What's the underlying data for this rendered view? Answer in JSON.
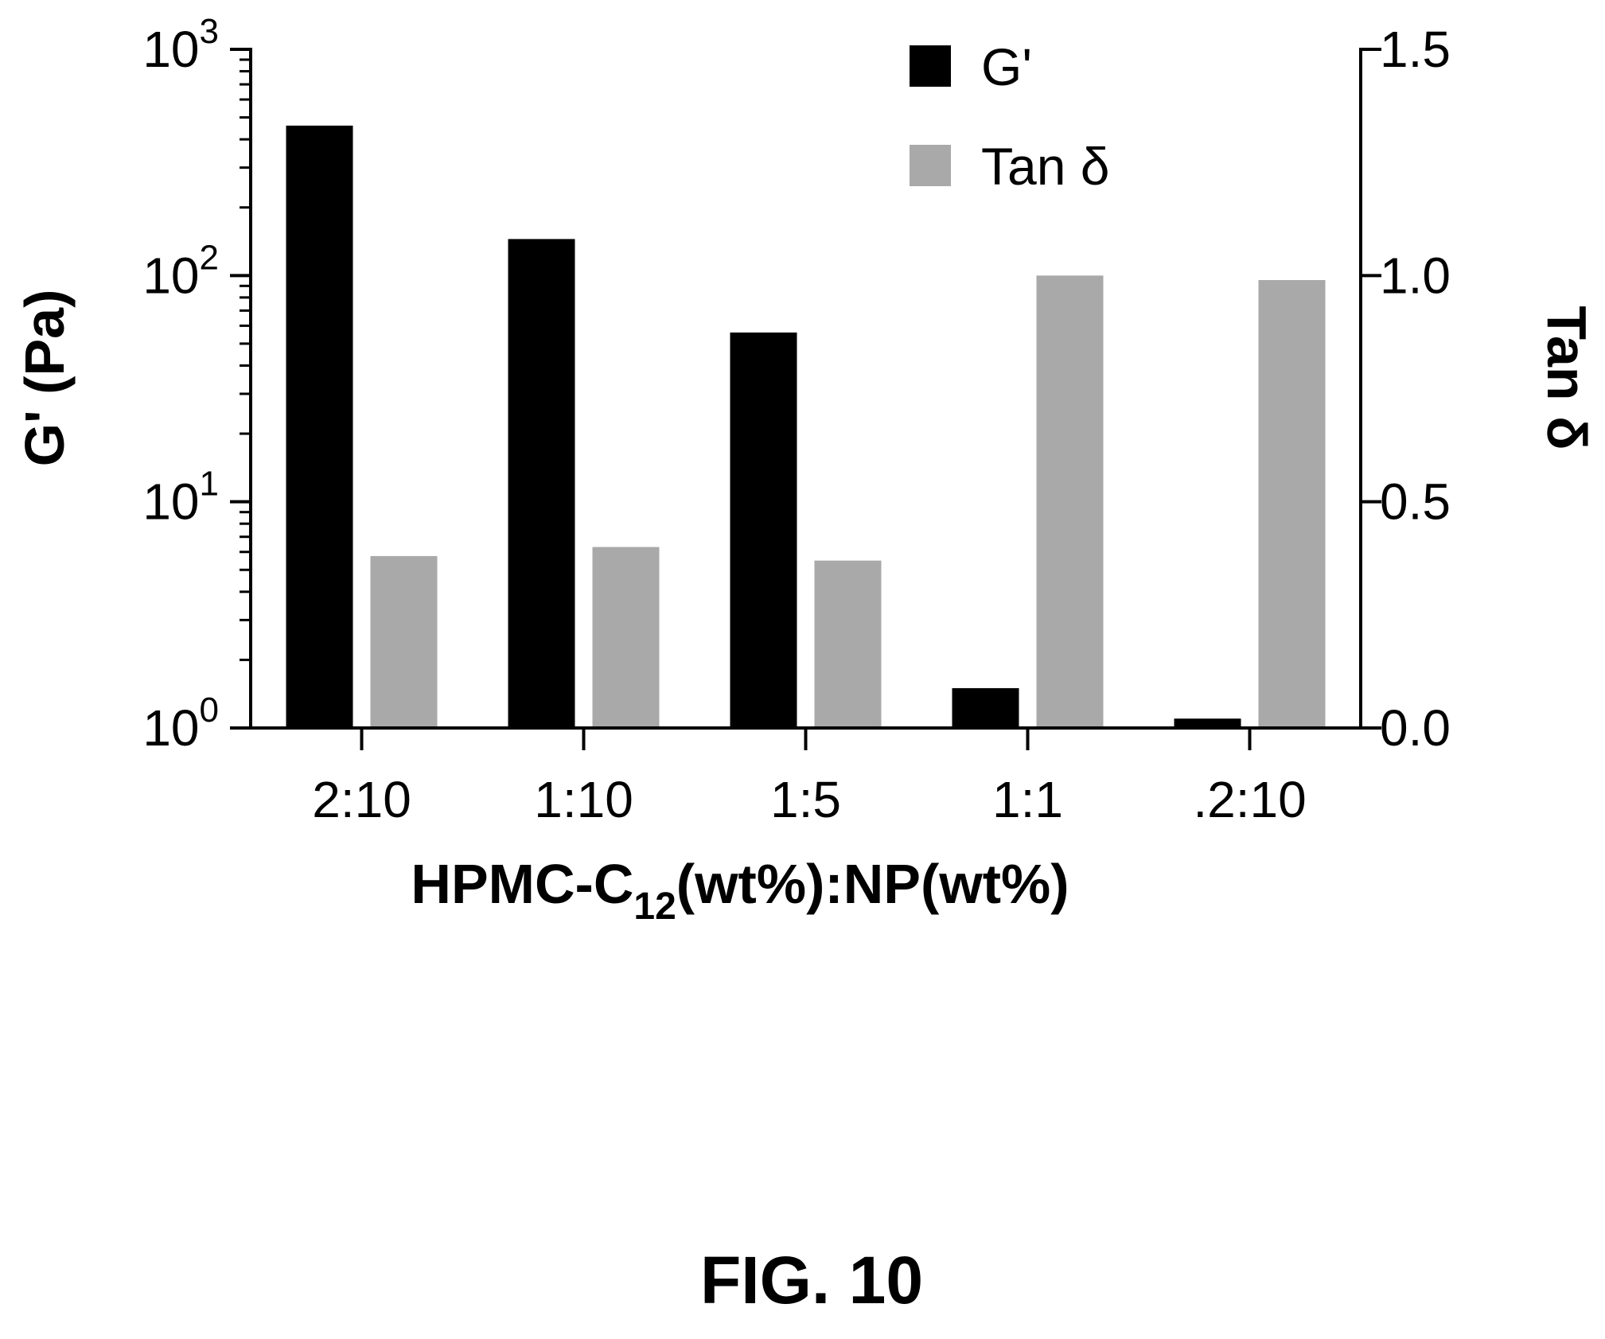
{
  "chart_data": {
    "type": "bar",
    "categories": [
      "2:10",
      "1:10",
      "1:5",
      "1:1",
      ".2:10"
    ],
    "series": [
      {
        "name": "G'",
        "axis": "left",
        "color": "#000000",
        "values": [
          460,
          145,
          56,
          1.5,
          1.1
        ]
      },
      {
        "name": "Tan δ",
        "axis": "right",
        "color": "#a9a9a9",
        "values": [
          0.38,
          0.4,
          0.37,
          1.0,
          0.99
        ]
      }
    ],
    "y_left": {
      "label": "G' (Pa)",
      "scale": "log",
      "range": [
        1,
        1000
      ],
      "ticks": [
        {
          "base": "10",
          "exp": "0"
        },
        {
          "base": "10",
          "exp": "1"
        },
        {
          "base": "10",
          "exp": "2"
        },
        {
          "base": "10",
          "exp": "3"
        }
      ]
    },
    "y_right": {
      "label": "Tan δ",
      "scale": "linear",
      "range": [
        0,
        1.5
      ],
      "ticks": [
        "0.0",
        "0.5",
        "1.0",
        "1.5"
      ]
    },
    "xlabel": {
      "main": "HPMC-C",
      "sub": "12",
      "rest": "(wt%):NP(wt%)"
    },
    "legend_position": "top-right",
    "grid": false
  },
  "figure_label": "FIG. 10"
}
